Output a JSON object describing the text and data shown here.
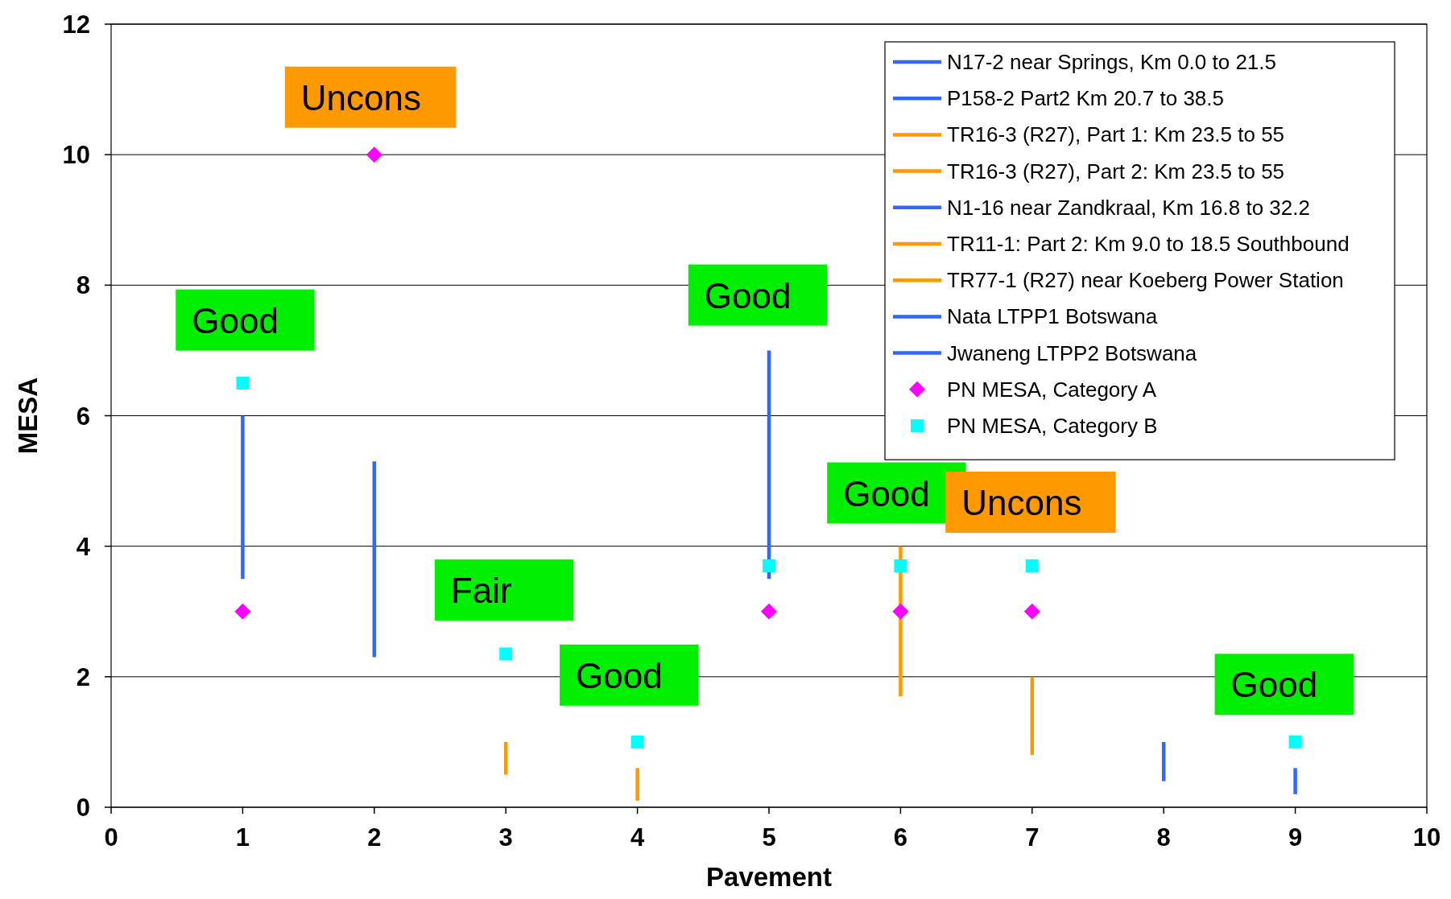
{
  "chart_data": {
    "type": "line",
    "xlabel": "Pavement",
    "ylabel": "MESA",
    "xlim": [
      0,
      10
    ],
    "xticks": [
      0,
      1,
      2,
      3,
      4,
      5,
      6,
      7,
      8,
      9,
      10
    ],
    "ylim": [
      0,
      12
    ],
    "yticks": [
      0,
      2,
      4,
      6,
      8,
      10,
      12
    ],
    "grid": "y",
    "legend": "top right",
    "line_style": "solid",
    "series": [
      {
        "name": "N17-2 near Springs, Km 0.0 to 21.5",
        "color": "#3366ff",
        "x": [
          1,
          1
        ],
        "values": [
          3.5,
          6
        ]
      },
      {
        "name": "P158-2 Part2 Km 20.7 to 38.5",
        "color": "#3366ff",
        "x": [
          2,
          2
        ],
        "values": [
          2.3,
          5.3
        ]
      },
      {
        "name": "TR16-3 (R27), Part 1: Km 23.5 to 55",
        "color": "#ff9900",
        "x": [
          3,
          3
        ],
        "values": [
          0.5,
          1
        ]
      },
      {
        "name": "TR16-3 (R27), Part 2: Km 23.5 to 55",
        "color": "#ff9900",
        "x": [
          4,
          4
        ],
        "values": [
          0.1,
          0.6
        ]
      },
      {
        "name": "N1-16 near Zandkraal, Km 16.8 to 32.2",
        "color": "#3366ff",
        "x": [
          5,
          5
        ],
        "values": [
          3.5,
          7
        ]
      },
      {
        "name": "TR11-1: Part 2: Km 9.0 to 18.5 Southbound",
        "color": "#ff9900",
        "x": [
          6,
          6
        ],
        "values": [
          1.7,
          4
        ]
      },
      {
        "name": "TR77-1 (R27) near Koeberg Power Station",
        "color": "#ff9900",
        "x": [
          7,
          7
        ],
        "values": [
          0.8,
          2
        ]
      },
      {
        "name": "Nata LTPP1 Botswana",
        "color": "#3366ff",
        "x": [
          8,
          8
        ],
        "values": [
          0.4,
          1
        ]
      },
      {
        "name": "Jwaneng LTPP2 Botswana",
        "color": "#3366ff",
        "x": [
          9,
          9
        ],
        "values": [
          0.2,
          0.6
        ]
      },
      {
        "name": "PN MESA, Category A",
        "type": "scatter",
        "marker": "diamond",
        "color": "#ff00ff",
        "x": [
          1,
          2,
          5,
          6,
          7
        ],
        "values": [
          3,
          10,
          3,
          3,
          3
        ]
      },
      {
        "name": "PN MESA, Category B",
        "type": "scatter",
        "marker": "square",
        "color": "#00ffff",
        "x": [
          1,
          3,
          4,
          5,
          6,
          7,
          9
        ],
        "values": [
          6.5,
          2.35,
          1,
          3.7,
          3.7,
          3.7,
          1
        ]
      }
    ],
    "annotations": [
      "Good",
      "Uncons",
      "Fair",
      "Good",
      "Good",
      "Good",
      "Uncons",
      "Good"
    ]
  }
}
